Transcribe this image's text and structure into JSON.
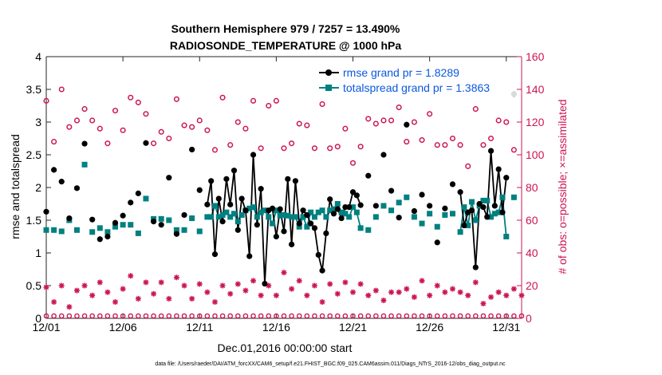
{
  "chart_data": {
    "type": "line",
    "title": "Southern Hemisphere 979 / 7257 = 13.490%",
    "subtitle": "RADIOSONDE_TEMPERATURE @ 1000 hPa",
    "xlabel": "Dec.01,2016 00:00:00 start",
    "ylabel": "rmse and totalspread",
    "ylabel_right": "# of obs: o=possible; ×=assimilated",
    "footnote": "data file: /Users/raeder/DAI/ATM_forcXX/CAM6_setup/f.e21.FHIST_BGC.f09_025.CAM6assim.011/Diags_NTrS_2016-12/obs_diag_output.nc",
    "xlim": [
      0,
      31
    ],
    "ylim": [
      0,
      4
    ],
    "ylim_right": [
      0,
      160
    ],
    "x_ticks": [
      0,
      5,
      10,
      15,
      20,
      25,
      30
    ],
    "x_tick_labels": [
      "12/01",
      "12/06",
      "12/11",
      "12/16",
      "12/21",
      "12/26",
      "12/31"
    ],
    "y_ticks": [
      0,
      0.5,
      1,
      1.5,
      2,
      2.5,
      3,
      3.5,
      4
    ],
    "y_tick_labels": [
      "0",
      "0.5",
      "1",
      "1.5",
      "2",
      "2.5",
      "3",
      "3.5",
      "4"
    ],
    "y_ticks_right": [
      0,
      20,
      40,
      60,
      80,
      100,
      120,
      140,
      160
    ],
    "y_tick_labels_right": [
      "0",
      "20",
      "40",
      "60",
      "80",
      "100",
      "120",
      "140",
      "160"
    ],
    "grid": false,
    "legend_position": "top-right",
    "colors": {
      "rmse": "#000000",
      "spread": "#008080",
      "obs": "#cc1455",
      "legend_text": "#0b57e0"
    },
    "series": [
      {
        "name": "rmse grand pr = 1.8289",
        "color": "#000000",
        "marker": "filled-circle",
        "points": [
          [
            0,
            1.63
          ],
          [
            0.5,
            2.27
          ],
          [
            1,
            2.09
          ],
          [
            1.5,
            1.53
          ],
          [
            2,
            1.99
          ],
          [
            2.5,
            2.67
          ],
          [
            3,
            1.51
          ],
          [
            3.5,
            1.21
          ],
          [
            4,
            1.25
          ],
          [
            4.5,
            1.46
          ],
          [
            5,
            1.57
          ],
          [
            5.5,
            1.77
          ],
          [
            6,
            1.91
          ],
          [
            6.5,
            2.68
          ],
          [
            7,
            1.48
          ],
          [
            7.5,
            1.43
          ],
          [
            8,
            2.15
          ],
          [
            8.5,
            1.29
          ],
          [
            9,
            1.58
          ],
          [
            9.5,
            2.58
          ],
          [
            10,
            1.96
          ],
          [
            10.5,
            1.74
          ],
          [
            10.75,
            2.1
          ],
          [
            11.0,
            0.98
          ],
          [
            11.25,
            1.83
          ],
          [
            11.5,
            1.48
          ],
          [
            11.75,
            2.13
          ],
          [
            12.0,
            1.74
          ],
          [
            12.25,
            2.26
          ],
          [
            12.5,
            1.35
          ],
          [
            12.75,
            1.83
          ],
          [
            13.0,
            1.65
          ],
          [
            13.25,
            0.95
          ],
          [
            13.5,
            2.5
          ],
          [
            13.75,
            1.43
          ],
          [
            14.0,
            1.98
          ],
          [
            14.25,
            0.53
          ],
          [
            14.5,
            1.65
          ],
          [
            14.75,
            1.68
          ],
          [
            15.0,
            1.25
          ],
          [
            15.25,
            1.67
          ],
          [
            15.5,
            1.33
          ],
          [
            15.75,
            2.13
          ],
          [
            16.0,
            1.13
          ],
          [
            16.25,
            2.1
          ],
          [
            16.5,
            1.45
          ],
          [
            16.75,
            1.65
          ],
          [
            17.0,
            1.58
          ],
          [
            17.25,
            1.45
          ],
          [
            17.5,
            1.38
          ],
          [
            17.75,
            0.97
          ],
          [
            18.0,
            0.73
          ],
          [
            18.25,
            1.3
          ],
          [
            18.5,
            1.82
          ],
          [
            18.75,
            1.6
          ],
          [
            19.0,
            1.67
          ],
          [
            19.25,
            1.53
          ],
          [
            19.5,
            1.7
          ],
          [
            19.75,
            1.7
          ],
          [
            20.0,
            1.93
          ],
          [
            20.25,
            1.88
          ],
          [
            20.5,
            1.73
          ],
          [
            21.0,
            2.18
          ],
          [
            21.5,
            1.72
          ],
          [
            22.0,
            2.5
          ],
          [
            22.5,
            1.95
          ],
          [
            23.0,
            1.54
          ],
          [
            23.5,
            2.96
          ],
          [
            24.0,
            1.64
          ],
          [
            24.5,
            1.89
          ],
          [
            25.0,
            1.72
          ],
          [
            25.5,
            1.16
          ],
          [
            26.0,
            1.68
          ],
          [
            26.5,
            2.05
          ],
          [
            27.0,
            1.93
          ],
          [
            27.25,
            1.42
          ],
          [
            27.5,
            1.62
          ],
          [
            27.75,
            1.65
          ],
          [
            28.0,
            0.78
          ],
          [
            28.25,
            1.75
          ],
          [
            28.5,
            1.7
          ],
          [
            28.75,
            1.55
          ],
          [
            29.0,
            2.56
          ],
          [
            29.25,
            1.72
          ],
          [
            29.5,
            2.28
          ],
          [
            29.75,
            1.62
          ],
          [
            30.0,
            2.15
          ],
          [
            30.5,
            3.43
          ]
        ]
      },
      {
        "name": "totalspread grand pr = 1.3863",
        "color": "#008080",
        "marker": "filled-square",
        "points": [
          [
            0,
            1.35
          ],
          [
            0.5,
            1.35
          ],
          [
            1,
            1.33
          ],
          [
            1.5,
            1.5
          ],
          [
            2,
            1.35
          ],
          [
            2.5,
            2.35
          ],
          [
            3,
            1.32
          ],
          [
            3.5,
            1.38
          ],
          [
            4,
            1.32
          ],
          [
            4.5,
            1.4
          ],
          [
            5,
            1.43
          ],
          [
            5.5,
            1.43
          ],
          [
            6,
            1.3
          ],
          [
            6.5,
            1.83
          ],
          [
            7,
            1.52
          ],
          [
            7.5,
            1.52
          ],
          [
            8,
            1.5
          ],
          [
            8.5,
            1.35
          ],
          [
            9,
            1.35
          ],
          [
            9.5,
            1.53
          ],
          [
            10,
            1.33
          ],
          [
            10.5,
            1.55
          ],
          [
            10.75,
            1.55
          ],
          [
            11.0,
            1.72
          ],
          [
            11.25,
            1.55
          ],
          [
            11.5,
            1.58
          ],
          [
            11.75,
            1.62
          ],
          [
            12.0,
            1.55
          ],
          [
            12.25,
            1.6
          ],
          [
            12.5,
            1.48
          ],
          [
            12.75,
            1.58
          ],
          [
            13.0,
            1.65
          ],
          [
            13.25,
            1.68
          ],
          [
            13.5,
            1.7
          ],
          [
            13.75,
            1.55
          ],
          [
            14.0,
            1.62
          ],
          [
            14.25,
            1.65
          ],
          [
            14.5,
            1.55
          ],
          [
            14.75,
            1.45
          ],
          [
            15.0,
            1.65
          ],
          [
            15.25,
            1.57
          ],
          [
            15.5,
            1.58
          ],
          [
            15.75,
            1.57
          ],
          [
            16.0,
            1.55
          ],
          [
            16.25,
            1.55
          ],
          [
            16.5,
            1.4
          ],
          [
            16.75,
            1.55
          ],
          [
            17.0,
            1.4
          ],
          [
            17.25,
            1.62
          ],
          [
            17.5,
            1.55
          ],
          [
            17.75,
            1.62
          ],
          [
            18.0,
            1.65
          ],
          [
            18.25,
            1.55
          ],
          [
            18.5,
            1.65
          ],
          [
            18.75,
            1.67
          ],
          [
            19.0,
            1.75
          ],
          [
            19.25,
            1.62
          ],
          [
            19.5,
            1.6
          ],
          [
            19.75,
            1.55
          ],
          [
            20.0,
            1.7
          ],
          [
            20.25,
            1.62
          ],
          [
            20.5,
            1.38
          ],
          [
            21.0,
            1.35
          ],
          [
            21.5,
            1.55
          ],
          [
            22.0,
            1.72
          ],
          [
            22.5,
            1.65
          ],
          [
            23.0,
            1.77
          ],
          [
            23.5,
            1.85
          ],
          [
            24.0,
            1.55
          ],
          [
            24.5,
            1.45
          ],
          [
            25.0,
            1.6
          ],
          [
            25.5,
            1.4
          ],
          [
            26.0,
            1.58
          ],
          [
            26.5,
            1.6
          ],
          [
            27.0,
            1.32
          ],
          [
            27.25,
            1.7
          ],
          [
            27.5,
            1.42
          ],
          [
            27.75,
            1.78
          ],
          [
            28.0,
            1.5
          ],
          [
            28.25,
            1.72
          ],
          [
            28.5,
            1.8
          ],
          [
            28.75,
            1.8
          ],
          [
            29.0,
            1.55
          ],
          [
            29.25,
            1.6
          ],
          [
            29.5,
            1.62
          ],
          [
            29.75,
            1.85
          ],
          [
            30.0,
            1.25
          ],
          [
            30.5,
            1.85
          ]
        ]
      },
      {
        "name": "possible",
        "color": "#cc1455",
        "marker": "open-circle",
        "axis": "right",
        "points": [
          [
            0,
            133
          ],
          [
            0.5,
            108
          ],
          [
            1,
            140
          ],
          [
            1.5,
            117
          ],
          [
            2,
            121
          ],
          [
            2.5,
            128
          ],
          [
            3,
            121
          ],
          [
            3.5,
            116
          ],
          [
            4,
            107
          ],
          [
            4.5,
            127
          ],
          [
            5,
            115
          ],
          [
            5.5,
            135
          ],
          [
            6,
            132
          ],
          [
            6.5,
            125
          ],
          [
            7,
            107
          ],
          [
            7.5,
            114
          ],
          [
            8,
            110
          ],
          [
            8.5,
            134
          ],
          [
            9,
            118
          ],
          [
            9.5,
            117
          ],
          [
            10,
            121
          ],
          [
            10.5,
            115
          ],
          [
            11,
            103
          ],
          [
            11.5,
            135
          ],
          [
            12,
            106
          ],
          [
            12.5,
            120
          ],
          [
            13,
            116
          ],
          [
            13.5,
            133
          ],
          [
            14,
            104
          ],
          [
            14.5,
            130
          ],
          [
            15,
            133
          ],
          [
            15.5,
            104
          ],
          [
            16,
            107
          ],
          [
            16.5,
            119
          ],
          [
            17,
            118
          ],
          [
            17.5,
            104
          ],
          [
            18,
            131
          ],
          [
            18.5,
            104
          ],
          [
            19,
            105
          ],
          [
            19.5,
            116
          ],
          [
            20,
            95
          ],
          [
            20.5,
            105
          ],
          [
            21,
            122
          ],
          [
            21.5,
            119
          ],
          [
            22,
            121
          ],
          [
            22.5,
            121
          ],
          [
            23,
            129
          ],
          [
            23.5,
            108
          ],
          [
            24,
            120
          ],
          [
            24.5,
            109
          ],
          [
            25,
            125
          ],
          [
            25.5,
            106
          ],
          [
            26,
            106
          ],
          [
            26.5,
            110
          ],
          [
            27,
            106
          ],
          [
            27.5,
            93
          ],
          [
            28,
            128
          ],
          [
            28.5,
            106
          ],
          [
            29,
            110
          ],
          [
            29.5,
            121
          ],
          [
            30,
            120
          ],
          [
            30.5,
            103
          ]
        ]
      },
      {
        "name": "assimilated",
        "color": "#cc1455",
        "marker": "star",
        "axis": "right",
        "points": [
          [
            0,
            19
          ],
          [
            0.5,
            10
          ],
          [
            1,
            20
          ],
          [
            1.5,
            7
          ],
          [
            2,
            17
          ],
          [
            2.5,
            20
          ],
          [
            3,
            14
          ],
          [
            3.5,
            22
          ],
          [
            4,
            16
          ],
          [
            4.5,
            10
          ],
          [
            5,
            18
          ],
          [
            5.5,
            26
          ],
          [
            6,
            12
          ],
          [
            6.5,
            22
          ],
          [
            7,
            15
          ],
          [
            7.5,
            22
          ],
          [
            8,
            12
          ],
          [
            8.5,
            25
          ],
          [
            9,
            20
          ],
          [
            9.5,
            12
          ],
          [
            10,
            21
          ],
          [
            10.5,
            16
          ],
          [
            11,
            10
          ],
          [
            11.5,
            20
          ],
          [
            12,
            15
          ],
          [
            12.5,
            21
          ],
          [
            13,
            17
          ],
          [
            13.5,
            23
          ],
          [
            14,
            14
          ],
          [
            14.5,
            20
          ],
          [
            15,
            14
          ],
          [
            15.5,
            28
          ],
          [
            16,
            18
          ],
          [
            16.5,
            23
          ],
          [
            17,
            14
          ],
          [
            17.5,
            20
          ],
          [
            18,
            10
          ],
          [
            18.5,
            21
          ],
          [
            19,
            15
          ],
          [
            19.5,
            22
          ],
          [
            20,
            16
          ],
          [
            20.5,
            21
          ],
          [
            21,
            14
          ],
          [
            21.5,
            17
          ],
          [
            22,
            11
          ],
          [
            22.5,
            16
          ],
          [
            23,
            16
          ],
          [
            23.5,
            18
          ],
          [
            24,
            13
          ],
          [
            24.5,
            23
          ],
          [
            25,
            14
          ],
          [
            25.5,
            20
          ],
          [
            26,
            16
          ],
          [
            26.5,
            18
          ],
          [
            27,
            16
          ],
          [
            27.5,
            14
          ],
          [
            28,
            22
          ],
          [
            28.5,
            9
          ],
          [
            29,
            13
          ],
          [
            29.5,
            16
          ],
          [
            30,
            14
          ],
          [
            30.5,
            18
          ],
          [
            31,
            14
          ]
        ]
      }
    ]
  }
}
